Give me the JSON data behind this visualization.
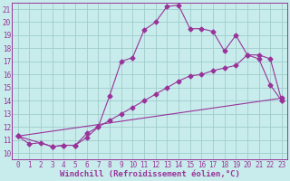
{
  "xlabel": "Windchill (Refroidissement éolien,°C)",
  "ylabel": "",
  "xlim": [
    -0.5,
    23.5
  ],
  "ylim": [
    9.5,
    21.5
  ],
  "xticks": [
    0,
    1,
    2,
    3,
    4,
    5,
    6,
    7,
    8,
    9,
    10,
    11,
    12,
    13,
    14,
    15,
    16,
    17,
    18,
    19,
    20,
    21,
    22,
    23
  ],
  "yticks": [
    10,
    11,
    12,
    13,
    14,
    15,
    16,
    17,
    18,
    19,
    20,
    21
  ],
  "background_color": "#c8ecec",
  "grid_color": "#a0cccc",
  "line_color": "#993399",
  "line1_x": [
    0,
    1,
    2,
    3,
    4,
    5,
    6,
    7,
    8,
    9,
    10,
    11,
    12,
    13,
    14,
    15,
    16,
    17,
    18,
    19,
    20,
    21,
    22,
    23
  ],
  "line1_y": [
    11.3,
    10.7,
    10.8,
    10.5,
    10.6,
    10.6,
    11.2,
    12.0,
    14.4,
    17.0,
    17.3,
    19.4,
    20.0,
    21.2,
    21.3,
    19.5,
    19.5,
    19.3,
    17.8,
    19.0,
    17.5,
    17.2,
    15.2,
    14.0
  ],
  "line2_x": [
    0,
    3,
    4,
    5,
    6,
    7,
    8,
    9,
    10,
    11,
    12,
    13,
    14,
    15,
    16,
    17,
    18,
    19,
    20,
    21,
    22,
    23
  ],
  "line2_y": [
    11.3,
    10.5,
    10.6,
    10.6,
    11.5,
    12.0,
    12.5,
    13.0,
    13.5,
    14.0,
    14.5,
    15.0,
    15.5,
    15.9,
    16.0,
    16.3,
    16.5,
    16.7,
    17.5,
    17.5,
    17.2,
    14.0
  ],
  "line3_x": [
    0,
    23
  ],
  "line3_y": [
    11.3,
    14.2
  ],
  "marker": "D",
  "marker_size": 2.5,
  "line_width": 0.8,
  "figsize": [
    3.2,
    2.0
  ],
  "dpi": 100,
  "tick_fontsize": 5.5,
  "xlabel_fontsize": 6.5
}
